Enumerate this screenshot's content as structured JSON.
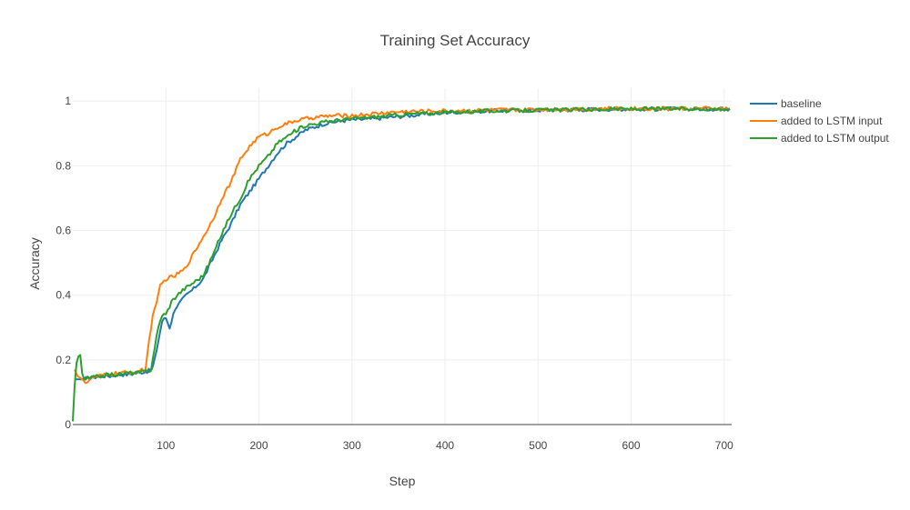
{
  "chart_data": {
    "type": "line",
    "title": "Training Set Accuracy",
    "xlabel": "Step",
    "ylabel": "Accuracy",
    "xlim": [
      0,
      708
    ],
    "ylim": [
      0,
      1.04
    ],
    "x_ticks": [
      100,
      200,
      300,
      400,
      500,
      600,
      700
    ],
    "y_ticks": [
      0,
      0.2,
      0.4,
      0.6,
      0.8,
      1
    ],
    "y_tick_labels": [
      "0",
      "0.2",
      "0.4",
      "0.6",
      "0.8",
      "1"
    ],
    "grid": true,
    "legend_position": "right",
    "series": [
      {
        "name": "baseline",
        "color": "#1f77b4",
        "points": [
          [
            2,
            0.14
          ],
          [
            10,
            0.14
          ],
          [
            20,
            0.145
          ],
          [
            30,
            0.15
          ],
          [
            40,
            0.15
          ],
          [
            50,
            0.155
          ],
          [
            60,
            0.155
          ],
          [
            70,
            0.16
          ],
          [
            80,
            0.165
          ],
          [
            85,
            0.17
          ],
          [
            88,
            0.2
          ],
          [
            92,
            0.26
          ],
          [
            96,
            0.32
          ],
          [
            100,
            0.33
          ],
          [
            104,
            0.3
          ],
          [
            110,
            0.36
          ],
          [
            116,
            0.38
          ],
          [
            122,
            0.4
          ],
          [
            130,
            0.42
          ],
          [
            140,
            0.45
          ],
          [
            150,
            0.51
          ],
          [
            160,
            0.57
          ],
          [
            170,
            0.62
          ],
          [
            180,
            0.68
          ],
          [
            190,
            0.72
          ],
          [
            200,
            0.76
          ],
          [
            210,
            0.8
          ],
          [
            220,
            0.84
          ],
          [
            230,
            0.87
          ],
          [
            240,
            0.89
          ],
          [
            250,
            0.91
          ],
          [
            260,
            0.92
          ],
          [
            270,
            0.93
          ],
          [
            280,
            0.935
          ],
          [
            290,
            0.94
          ],
          [
            300,
            0.942
          ],
          [
            320,
            0.945
          ],
          [
            340,
            0.95
          ],
          [
            360,
            0.955
          ],
          [
            380,
            0.96
          ],
          [
            400,
            0.965
          ],
          [
            450,
            0.97
          ],
          [
            500,
            0.972
          ],
          [
            550,
            0.974
          ],
          [
            600,
            0.976
          ],
          [
            650,
            0.976
          ],
          [
            700,
            0.976
          ],
          [
            706,
            0.976
          ]
        ]
      },
      {
        "name": "added to LSTM input",
        "color": "#ff7f0e",
        "points": [
          [
            2,
            0.17
          ],
          [
            5,
            0.15
          ],
          [
            10,
            0.14
          ],
          [
            15,
            0.13
          ],
          [
            20,
            0.145
          ],
          [
            30,
            0.15
          ],
          [
            40,
            0.155
          ],
          [
            50,
            0.16
          ],
          [
            60,
            0.16
          ],
          [
            70,
            0.165
          ],
          [
            78,
            0.17
          ],
          [
            82,
            0.26
          ],
          [
            86,
            0.34
          ],
          [
            90,
            0.37
          ],
          [
            94,
            0.43
          ],
          [
            100,
            0.45
          ],
          [
            110,
            0.46
          ],
          [
            120,
            0.48
          ],
          [
            130,
            0.53
          ],
          [
            140,
            0.58
          ],
          [
            150,
            0.63
          ],
          [
            160,
            0.7
          ],
          [
            170,
            0.75
          ],
          [
            180,
            0.82
          ],
          [
            190,
            0.86
          ],
          [
            200,
            0.89
          ],
          [
            210,
            0.9
          ],
          [
            220,
            0.92
          ],
          [
            230,
            0.93
          ],
          [
            240,
            0.94
          ],
          [
            250,
            0.945
          ],
          [
            260,
            0.95
          ],
          [
            280,
            0.955
          ],
          [
            300,
            0.955
          ],
          [
            320,
            0.96
          ],
          [
            340,
            0.965
          ],
          [
            360,
            0.968
          ],
          [
            400,
            0.97
          ],
          [
            450,
            0.972
          ],
          [
            500,
            0.974
          ],
          [
            550,
            0.976
          ],
          [
            600,
            0.977
          ],
          [
            650,
            0.977
          ],
          [
            700,
            0.977
          ],
          [
            706,
            0.977
          ]
        ]
      },
      {
        "name": "added to LSTM output",
        "color": "#2ca02c",
        "points": [
          [
            0,
            0.01
          ],
          [
            2,
            0.12
          ],
          [
            4,
            0.19
          ],
          [
            6,
            0.21
          ],
          [
            8,
            0.215
          ],
          [
            10,
            0.16
          ],
          [
            12,
            0.14
          ],
          [
            20,
            0.145
          ],
          [
            30,
            0.15
          ],
          [
            40,
            0.155
          ],
          [
            50,
            0.155
          ],
          [
            60,
            0.16
          ],
          [
            70,
            0.16
          ],
          [
            80,
            0.165
          ],
          [
            84,
            0.17
          ],
          [
            88,
            0.24
          ],
          [
            92,
            0.3
          ],
          [
            96,
            0.34
          ],
          [
            100,
            0.34
          ],
          [
            106,
            0.38
          ],
          [
            112,
            0.4
          ],
          [
            120,
            0.42
          ],
          [
            130,
            0.44
          ],
          [
            140,
            0.46
          ],
          [
            150,
            0.52
          ],
          [
            160,
            0.59
          ],
          [
            170,
            0.65
          ],
          [
            180,
            0.7
          ],
          [
            190,
            0.76
          ],
          [
            200,
            0.8
          ],
          [
            210,
            0.83
          ],
          [
            220,
            0.87
          ],
          [
            230,
            0.89
          ],
          [
            240,
            0.91
          ],
          [
            250,
            0.925
          ],
          [
            260,
            0.93
          ],
          [
            270,
            0.935
          ],
          [
            280,
            0.94
          ],
          [
            300,
            0.945
          ],
          [
            320,
            0.95
          ],
          [
            340,
            0.955
          ],
          [
            360,
            0.96
          ],
          [
            380,
            0.962
          ],
          [
            400,
            0.965
          ],
          [
            450,
            0.97
          ],
          [
            500,
            0.972
          ],
          [
            550,
            0.974
          ],
          [
            600,
            0.976
          ],
          [
            650,
            0.976
          ],
          [
            700,
            0.976
          ],
          [
            706,
            0.976
          ]
        ]
      }
    ]
  }
}
